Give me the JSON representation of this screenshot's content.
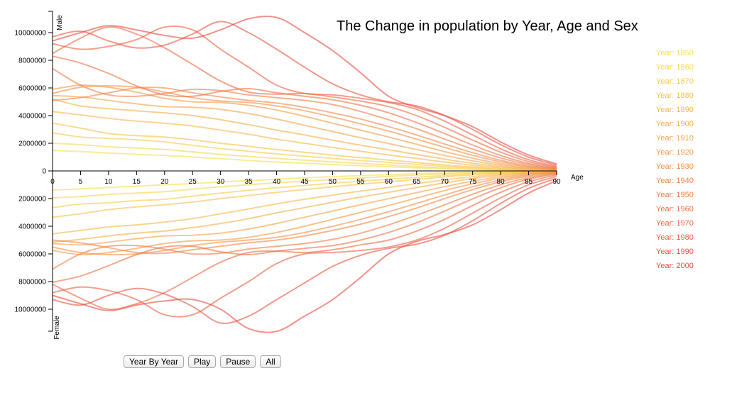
{
  "controls": {
    "year_by_year": "Year By Year",
    "play": "Play",
    "pause": "Pause",
    "all": "All"
  },
  "chart_data": {
    "type": "line",
    "title": "The Change in population by Year, Age and Sex",
    "xlabel": "Age",
    "ylabel_top": "Male",
    "ylabel_bottom": "Female",
    "xlim": [
      0,
      90
    ],
    "ylim": [
      -10000000,
      10000000
    ],
    "x": [
      0,
      5,
      10,
      15,
      20,
      25,
      30,
      35,
      40,
      45,
      50,
      55,
      60,
      65,
      70,
      75,
      80,
      85,
      90
    ],
    "x_ticks": [
      "0",
      "5",
      "10",
      "15",
      "20",
      "25",
      "30",
      "35",
      "40",
      "45",
      "50",
      "55",
      "60",
      "65",
      "70",
      "75",
      "80",
      "85",
      "90"
    ],
    "y_ticks": [
      "10000000",
      "8000000",
      "6000000",
      "4000000",
      "2000000",
      "0",
      "2000000",
      "4000000",
      "6000000",
      "8000000",
      "10000000"
    ],
    "y_tick_values": [
      10000000,
      8000000,
      6000000,
      4000000,
      2000000,
      0,
      -2000000,
      -4000000,
      -6000000,
      -8000000,
      -10000000
    ],
    "legend_position": "right",
    "series": [
      {
        "name": "Year: 1850",
        "color": "#f5df4d",
        "male": [
          1480000,
          1400000,
          1300000,
          1200000,
          1120000,
          1000000,
          880000,
          760000,
          640000,
          560000,
          460000,
          380000,
          300000,
          220000,
          150000,
          100000,
          55000,
          25000,
          10000
        ],
        "female": [
          1380000,
          1300000,
          1200000,
          1100000,
          1000000,
          920000,
          800000,
          700000,
          600000,
          500000,
          420000,
          340000,
          270000,
          200000,
          140000,
          90000,
          50000,
          25000,
          10000
        ]
      },
      {
        "name": "Year: 1860",
        "color": "#f6d54c",
        "male": [
          2000000,
          1900000,
          1750000,
          1650000,
          1550000,
          1380000,
          1200000,
          1050000,
          900000,
          780000,
          650000,
          540000,
          430000,
          320000,
          220000,
          140000,
          80000,
          35000,
          15000
        ],
        "female": [
          1950000,
          1850000,
          1700000,
          1600000,
          1500000,
          1320000,
          1150000,
          1000000,
          860000,
          740000,
          620000,
          510000,
          400000,
          300000,
          210000,
          135000,
          75000,
          35000,
          15000
        ]
      },
      {
        "name": "Year: 1870",
        "color": "#f6cb4b",
        "male": [
          2750000,
          2450000,
          2350000,
          2250000,
          2100000,
          1850000,
          1620000,
          1420000,
          1230000,
          1070000,
          900000,
          750000,
          610000,
          470000,
          330000,
          210000,
          120000,
          55000,
          20000
        ],
        "female": [
          2650000,
          2400000,
          2300000,
          2150000,
          2050000,
          1820000,
          1600000,
          1400000,
          1210000,
          1050000,
          890000,
          740000,
          600000,
          460000,
          320000,
          205000,
          115000,
          55000,
          20000
        ]
      },
      {
        "name": "Year: 1880",
        "color": "#f6c14a",
        "male": [
          3450000,
          3100000,
          2700000,
          2550000,
          2450000,
          2250000,
          2000000,
          1780000,
          1550000,
          1350000,
          1150000,
          960000,
          790000,
          610000,
          430000,
          280000,
          160000,
          70000,
          25000
        ],
        "female": [
          3350000,
          3100000,
          2800000,
          2600000,
          2450000,
          2250000,
          2000000,
          1780000,
          1550000,
          1350000,
          1150000,
          960000,
          790000,
          610000,
          430000,
          280000,
          160000,
          70000,
          25000
        ]
      },
      {
        "name": "Year: 1890",
        "color": "#f6b749",
        "male": [
          4300000,
          4050000,
          3800000,
          3600000,
          3450000,
          3250000,
          2950000,
          2650000,
          2300000,
          2000000,
          1700000,
          1420000,
          1160000,
          900000,
          640000,
          410000,
          230000,
          100000,
          35000
        ],
        "female": [
          4550000,
          4300000,
          4050000,
          3900000,
          3700000,
          3450000,
          3100000,
          2750000,
          2380000,
          2050000,
          1750000,
          1460000,
          1190000,
          920000,
          650000,
          415000,
          230000,
          100000,
          35000
        ]
      },
      {
        "name": "Year: 1900",
        "color": "#f5ad48",
        "male": [
          5200000,
          4700000,
          4500000,
          4350000,
          4200000,
          4000000,
          3700000,
          3350000,
          2950000,
          2600000,
          2220000,
          1860000,
          1530000,
          1190000,
          850000,
          550000,
          310000,
          140000,
          50000
        ],
        "female": [
          5150000,
          4950000,
          4700000,
          4500000,
          4350000,
          4100000,
          3800000,
          3450000,
          3030000,
          2650000,
          2260000,
          1890000,
          1550000,
          1200000,
          860000,
          555000,
          310000,
          140000,
          50000
        ]
      },
      {
        "name": "Year: 1910",
        "color": "#f5a347",
        "male": [
          5450000,
          5350000,
          5100000,
          4850000,
          4650000,
          4600000,
          4450000,
          4150000,
          3750000,
          3300000,
          2850000,
          2400000,
          1980000,
          1550000,
          1120000,
          730000,
          410000,
          185000,
          65000
        ],
        "female": [
          5250000,
          5350000,
          5150000,
          4900000,
          4700000,
          4650000,
          4500000,
          4200000,
          3800000,
          3350000,
          2900000,
          2440000,
          2010000,
          1570000,
          1140000,
          740000,
          415000,
          185000,
          65000
        ]
      },
      {
        "name": "Year: 1920",
        "color": "#f49a46",
        "male": [
          5900000,
          6200000,
          6050000,
          5700000,
          5250000,
          5000000,
          4950000,
          4750000,
          4400000,
          3950000,
          3450000,
          2950000,
          2450000,
          1930000,
          1400000,
          920000,
          520000,
          235000,
          85000
        ],
        "female": [
          5750000,
          6050000,
          5900000,
          5600000,
          5250000,
          5050000,
          5000000,
          4800000,
          4450000,
          4000000,
          3500000,
          3000000,
          2500000,
          1960000,
          1420000,
          930000,
          525000,
          235000,
          85000
        ]
      },
      {
        "name": "Year: 1930",
        "color": "#f39045",
        "male": [
          5600000,
          6050000,
          6150000,
          6050000,
          5700000,
          5300000,
          5050000,
          4950000,
          4700000,
          4350000,
          3900000,
          3400000,
          2880000,
          2300000,
          1700000,
          1130000,
          650000,
          300000,
          110000
        ],
        "female": [
          5500000,
          5900000,
          6050000,
          6000000,
          5750000,
          5400000,
          5150000,
          5000000,
          4800000,
          4450000,
          4000000,
          3500000,
          2950000,
          2350000,
          1740000,
          1150000,
          660000,
          300000,
          110000
        ]
      },
      {
        "name": "Year: 1940",
        "color": "#f28644",
        "male": [
          5100000,
          5300000,
          5650000,
          6000000,
          6000000,
          5650000,
          5350000,
          5100000,
          4900000,
          4600000,
          4200000,
          3750000,
          3200000,
          2600000,
          1950000,
          1320000,
          770000,
          360000,
          130000
        ],
        "female": [
          5000000,
          5200000,
          5550000,
          5900000,
          5950000,
          5700000,
          5450000,
          5200000,
          5000000,
          4700000,
          4300000,
          3850000,
          3300000,
          2680000,
          2000000,
          1350000,
          790000,
          370000,
          135000
        ]
      },
      {
        "name": "Year: 1950",
        "color": "#f17c43",
        "male": [
          7400000,
          6200000,
          5500000,
          5400000,
          5600000,
          5900000,
          5800000,
          5500000,
          5300000,
          5100000,
          4800000,
          4300000,
          3700000,
          3050000,
          2300000,
          1580000,
          940000,
          450000,
          170000
        ],
        "female": [
          7100000,
          6000000,
          5450000,
          5400000,
          5650000,
          6000000,
          5950000,
          5650000,
          5450000,
          5250000,
          4950000,
          4500000,
          3900000,
          3200000,
          2450000,
          1680000,
          1000000,
          480000,
          180000
        ]
      },
      {
        "name": "Year: 1960",
        "color": "#f07242",
        "male": [
          8300000,
          7800000,
          7050000,
          6150000,
          5500000,
          5400000,
          5750000,
          5950000,
          5650000,
          5400000,
          5150000,
          4750000,
          4200000,
          3500000,
          2700000,
          1870000,
          1120000,
          540000,
          200000
        ],
        "female": [
          8050000,
          7600000,
          6850000,
          6050000,
          5500000,
          5450000,
          5850000,
          6050000,
          5800000,
          5600000,
          5400000,
          5000000,
          4450000,
          3750000,
          2900000,
          2020000,
          1220000,
          590000,
          220000
        ]
      },
      {
        "name": "Year: 1970",
        "color": "#ee6841",
        "male": [
          8500000,
          9600000,
          10400000,
          9900000,
          8900000,
          7700000,
          6500000,
          5700000,
          5550000,
          5600000,
          5350000,
          5050000,
          4650000,
          4000000,
          3150000,
          2230000,
          1360000,
          670000,
          260000
        ],
        "female": [
          8200000,
          9200000,
          10000000,
          9600000,
          8800000,
          7700000,
          6600000,
          5900000,
          5800000,
          5900000,
          5700000,
          5350000,
          5000000,
          4350000,
          3500000,
          2500000,
          1550000,
          780000,
          300000
        ]
      },
      {
        "name": "Year: 1980",
        "color": "#ec5e40",
        "male": [
          9200000,
          8800000,
          9000000,
          9500000,
          10400000,
          10200000,
          8800000,
          7500000,
          6200000,
          5600000,
          5500000,
          5250000,
          4950000,
          4450000,
          3600000,
          2600000,
          1600000,
          810000,
          320000
        ],
        "female": [
          8800000,
          8400000,
          8650000,
          9300000,
          10400000,
          10400000,
          9200000,
          8000000,
          6700000,
          6000000,
          5900000,
          5750000,
          5500000,
          5000000,
          4150000,
          3050000,
          1950000,
          1000000,
          400000
        ]
      },
      {
        "name": "Year: 1990",
        "color": "#ea543f",
        "male": [
          9700000,
          10100000,
          9400000,
          8900000,
          9100000,
          9900000,
          10800000,
          10000000,
          8800000,
          7500000,
          6300000,
          5500000,
          5000000,
          4700000,
          4000000,
          3000000,
          1900000,
          1000000,
          420000
        ],
        "female": [
          9300000,
          9700000,
          9000000,
          8500000,
          8900000,
          9800000,
          11000000,
          10500000,
          9300000,
          8100000,
          6900000,
          6100000,
          5600000,
          5300000,
          4650000,
          3600000,
          2350000,
          1250000,
          540000
        ]
      },
      {
        "name": "Year: 2000",
        "color": "#e84a3e",
        "male": [
          9400000,
          10000000,
          10500000,
          10200000,
          9800000,
          9600000,
          10200000,
          11000000,
          11100000,
          10000000,
          8700000,
          7100000,
          5400000,
          4600000,
          4000000,
          3200000,
          2100000,
          1150000,
          510000
        ],
        "female": [
          9000000,
          9600000,
          10100000,
          9700000,
          9400000,
          9300000,
          10000000,
          11400000,
          11600000,
          10500000,
          9300000,
          7700000,
          6000000,
          5100000,
          4600000,
          3900000,
          2800000,
          1600000,
          700000
        ]
      }
    ]
  }
}
